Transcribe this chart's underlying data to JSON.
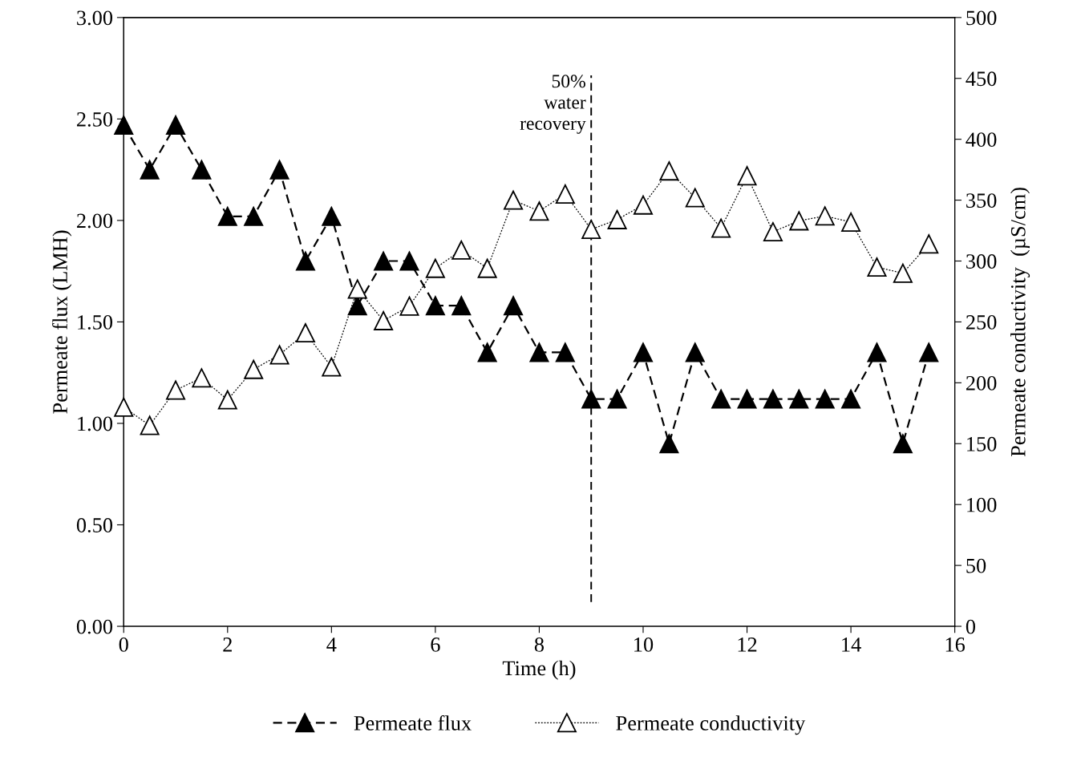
{
  "chart_data": {
    "type": "line",
    "xlabel": "Time (h)",
    "ylabel": "Permeate flux (LMH)",
    "y2label": "Permeate conductivity  (µS/cm)",
    "x": [
      0,
      0.5,
      1,
      1.5,
      2,
      2.5,
      3,
      3.5,
      4,
      4.5,
      5,
      5.5,
      6,
      6.5,
      7,
      7.5,
      8,
      8.5,
      9,
      9.5,
      10,
      10.5,
      11,
      11.5,
      12,
      12.5,
      13,
      13.5,
      14,
      14.5,
      15,
      15.5
    ],
    "series": [
      {
        "name": "Permeate flux",
        "color": "#000000",
        "line_style": "dashed",
        "values": [
          2.47,
          2.25,
          2.47,
          2.25,
          2.02,
          2.02,
          2.25,
          1.8,
          2.02,
          1.58,
          1.8,
          1.8,
          1.58,
          1.58,
          1.35,
          1.58,
          1.35,
          1.35,
          1.12,
          1.12,
          1.35,
          0.9,
          1.35,
          1.12,
          1.12,
          1.12,
          1.12,
          1.12,
          1.12,
          1.35,
          0.9,
          1.35
        ]
      },
      {
        "name": "Permeate conductivity",
        "color": "#000000",
        "line_style": "dotted",
        "axis": "y2",
        "values": [
          180,
          165,
          194,
          204,
          186,
          211,
          223,
          241,
          213,
          277,
          251,
          263,
          294,
          309,
          294,
          350,
          341,
          355,
          326,
          334,
          346,
          374,
          352,
          327,
          370,
          324,
          333,
          337,
          332,
          295,
          290,
          314
        ]
      }
    ],
    "marker": "triangle",
    "xlim": [
      0,
      16
    ],
    "xticks": [
      0,
      2,
      4,
      6,
      8,
      10,
      12,
      14,
      16
    ],
    "ylim": [
      0,
      3
    ],
    "yticks": [
      {
        "value": 0,
        "label": "0.00"
      },
      {
        "value": 0.5,
        "label": "0.50"
      },
      {
        "value": 1,
        "label": "1.00"
      },
      {
        "value": 1.5,
        "label": "1.50"
      },
      {
        "value": 2,
        "label": "2.00"
      },
      {
        "value": 2.5,
        "label": "2.50"
      },
      {
        "value": 3,
        "label": "3.00"
      }
    ],
    "y2lim": [
      0,
      500
    ],
    "y2ticks": [
      0,
      50,
      100,
      150,
      200,
      250,
      300,
      350,
      400,
      450,
      500
    ],
    "ref_lines": [
      {
        "axis": "x",
        "value": 9,
        "label": "50%\nwater\nrecovery",
        "color": "#000000",
        "line_style": "dashed"
      }
    ],
    "grid": false,
    "legend": "bottom"
  }
}
